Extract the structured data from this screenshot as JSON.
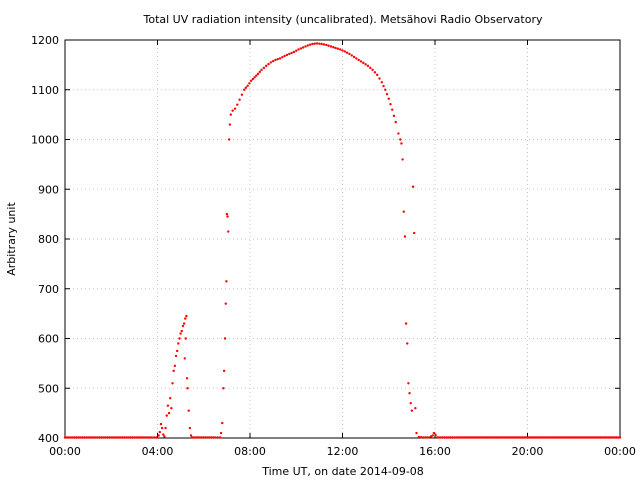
{
  "chart_data": {
    "type": "scatter",
    "title": "Total UV radiation intensity (uncalibrated). Metsähovi Radio Observatory",
    "xlabel": "Time UT, on date 2014-09-08",
    "ylabel": "Arbitrary unit",
    "x_unit": "hours UT",
    "xlim": [
      0,
      24
    ],
    "ylim": [
      400,
      1200
    ],
    "x_ticks": [
      {
        "value": 0,
        "label": "00:00"
      },
      {
        "value": 4,
        "label": "04:00"
      },
      {
        "value": 8,
        "label": "08:00"
      },
      {
        "value": 12,
        "label": "12:00"
      },
      {
        "value": 16,
        "label": "16:00"
      },
      {
        "value": 20,
        "label": "20:00"
      },
      {
        "value": 24,
        "label": "00:00"
      }
    ],
    "y_ticks": [
      {
        "value": 400,
        "label": "400"
      },
      {
        "value": 500,
        "label": "500"
      },
      {
        "value": 600,
        "label": "600"
      },
      {
        "value": 700,
        "label": "700"
      },
      {
        "value": 800,
        "label": "800"
      },
      {
        "value": 900,
        "label": "900"
      },
      {
        "value": 1000,
        "label": "1000"
      },
      {
        "value": 1100,
        "label": "1100"
      },
      {
        "value": 1200,
        "label": "1200"
      }
    ],
    "grid": true,
    "grid_style": "dotted",
    "marker_color": "#ff0000",
    "series": [
      {
        "name": "",
        "points": [
          [
            0.0,
            401
          ],
          [
            0.25,
            401
          ],
          [
            0.5,
            401
          ],
          [
            0.75,
            401
          ],
          [
            1.0,
            401
          ],
          [
            1.25,
            401
          ],
          [
            1.5,
            401
          ],
          [
            1.75,
            401
          ],
          [
            2.0,
            401
          ],
          [
            2.25,
            401
          ],
          [
            2.5,
            401
          ],
          [
            2.75,
            401
          ],
          [
            3.0,
            401
          ],
          [
            3.25,
            401
          ],
          [
            3.5,
            401
          ],
          [
            3.75,
            401
          ],
          [
            3.95,
            401
          ],
          [
            4.05,
            405
          ],
          [
            4.1,
            412
          ],
          [
            4.15,
            428
          ],
          [
            4.2,
            420
          ],
          [
            4.25,
            407
          ],
          [
            4.3,
            403
          ],
          [
            4.35,
            420
          ],
          [
            4.4,
            445
          ],
          [
            4.45,
            465
          ],
          [
            4.5,
            450
          ],
          [
            4.55,
            480
          ],
          [
            4.6,
            460
          ],
          [
            4.65,
            510
          ],
          [
            4.7,
            535
          ],
          [
            4.75,
            545
          ],
          [
            4.8,
            565
          ],
          [
            4.85,
            575
          ],
          [
            4.9,
            590
          ],
          [
            4.95,
            600
          ],
          [
            5.0,
            610
          ],
          [
            5.05,
            615
          ],
          [
            5.1,
            625
          ],
          [
            5.15,
            630
          ],
          [
            5.2,
            640
          ],
          [
            5.25,
            645
          ],
          [
            5.22,
            600
          ],
          [
            5.18,
            560
          ],
          [
            5.28,
            520
          ],
          [
            5.3,
            500
          ],
          [
            5.35,
            455
          ],
          [
            5.4,
            420
          ],
          [
            5.45,
            405
          ],
          [
            5.5,
            401
          ],
          [
            5.75,
            401
          ],
          [
            6.0,
            401
          ],
          [
            6.25,
            401
          ],
          [
            6.5,
            401
          ],
          [
            6.7,
            401
          ],
          [
            6.75,
            410
          ],
          [
            6.8,
            430
          ],
          [
            6.85,
            500
          ],
          [
            6.88,
            535
          ],
          [
            6.92,
            600
          ],
          [
            6.95,
            670
          ],
          [
            6.98,
            715
          ],
          [
            7.0,
            850
          ],
          [
            7.03,
            845
          ],
          [
            7.06,
            815
          ],
          [
            7.1,
            1000
          ],
          [
            7.13,
            1030
          ],
          [
            7.17,
            1050
          ],
          [
            7.25,
            1058
          ],
          [
            7.35,
            1062
          ],
          [
            7.45,
            1070
          ],
          [
            7.55,
            1080
          ],
          [
            7.65,
            1090
          ],
          [
            7.75,
            1100
          ],
          [
            7.9,
            1108
          ],
          [
            8.05,
            1118
          ],
          [
            8.2,
            1125
          ],
          [
            8.35,
            1132
          ],
          [
            8.5,
            1140
          ],
          [
            8.7,
            1148
          ],
          [
            8.9,
            1155
          ],
          [
            9.1,
            1160
          ],
          [
            9.3,
            1163
          ],
          [
            9.5,
            1168
          ],
          [
            9.7,
            1172
          ],
          [
            9.9,
            1176
          ],
          [
            10.1,
            1181
          ],
          [
            10.3,
            1185
          ],
          [
            10.5,
            1189
          ],
          [
            10.7,
            1192
          ],
          [
            10.9,
            1193
          ],
          [
            11.1,
            1192
          ],
          [
            11.3,
            1190
          ],
          [
            11.5,
            1187
          ],
          [
            11.7,
            1184
          ],
          [
            11.9,
            1181
          ],
          [
            12.1,
            1177
          ],
          [
            12.3,
            1172
          ],
          [
            12.5,
            1166
          ],
          [
            12.7,
            1160
          ],
          [
            12.9,
            1154
          ],
          [
            13.1,
            1148
          ],
          [
            13.3,
            1140
          ],
          [
            13.5,
            1130
          ],
          [
            13.7,
            1115
          ],
          [
            13.85,
            1100
          ],
          [
            14.0,
            1082
          ],
          [
            14.15,
            1060
          ],
          [
            14.3,
            1035
          ],
          [
            14.42,
            1012
          ],
          [
            14.5,
            1000
          ],
          [
            14.55,
            992
          ],
          [
            14.6,
            960
          ],
          [
            14.65,
            855
          ],
          [
            14.7,
            805
          ],
          [
            14.75,
            630
          ],
          [
            14.8,
            590
          ],
          [
            14.85,
            510
          ],
          [
            14.9,
            490
          ],
          [
            14.95,
            470
          ],
          [
            15.0,
            455
          ],
          [
            15.05,
            905
          ],
          [
            15.1,
            812
          ],
          [
            15.15,
            460
          ],
          [
            15.2,
            410
          ],
          [
            15.3,
            402
          ],
          [
            15.5,
            401
          ],
          [
            15.75,
            401
          ],
          [
            15.9,
            405
          ],
          [
            15.95,
            410
          ],
          [
            16.1,
            401
          ],
          [
            16.25,
            401
          ],
          [
            16.5,
            401
          ],
          [
            16.75,
            401
          ],
          [
            17.0,
            401
          ],
          [
            17.5,
            401
          ],
          [
            18.0,
            401
          ],
          [
            18.5,
            401
          ],
          [
            19.0,
            401
          ],
          [
            19.5,
            401
          ],
          [
            20.0,
            401
          ],
          [
            20.5,
            401
          ],
          [
            21.0,
            401
          ],
          [
            21.5,
            401
          ],
          [
            22.0,
            401
          ],
          [
            22.5,
            401
          ],
          [
            23.0,
            401
          ],
          [
            23.5,
            401
          ],
          [
            24.0,
            401
          ]
        ]
      }
    ]
  }
}
